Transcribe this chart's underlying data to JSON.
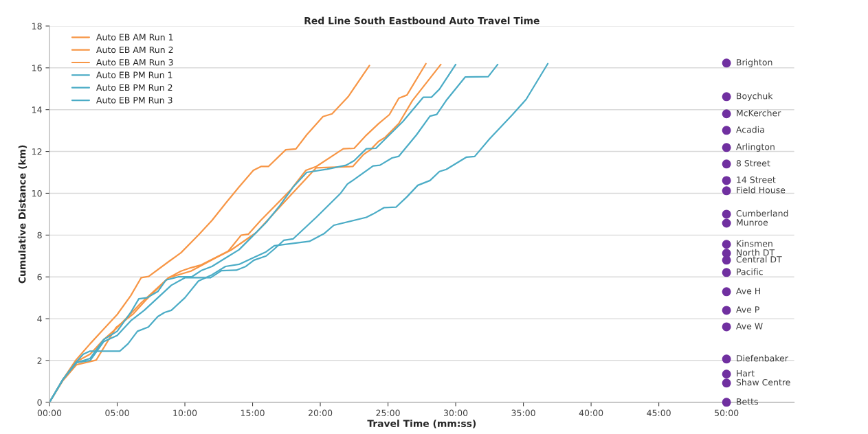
{
  "chart_data": {
    "type": "line",
    "title": "Red Line South Eastbound Auto Travel Time",
    "xlabel": "Travel Time (mm:ss)",
    "ylabel": "Cumulative Distance (km)",
    "xlim": [
      0,
      55
    ],
    "ylim": [
      0,
      18
    ],
    "xticks": [
      {
        "value": 0,
        "label": "00:00"
      },
      {
        "value": 5,
        "label": "05:00"
      },
      {
        "value": 10,
        "label": "10:00"
      },
      {
        "value": 15,
        "label": "15:00"
      },
      {
        "value": 20,
        "label": "20:00"
      },
      {
        "value": 25,
        "label": "25:00"
      },
      {
        "value": 30,
        "label": "30:00"
      },
      {
        "value": 35,
        "label": "35:00"
      },
      {
        "value": 40,
        "label": "40:00"
      },
      {
        "value": 45,
        "label": "45:00"
      },
      {
        "value": 50,
        "label": "50:00"
      }
    ],
    "yticks": [
      0,
      2,
      4,
      6,
      8,
      10,
      12,
      14,
      16,
      18
    ],
    "grid": "y",
    "legend": "top left",
    "series": [
      {
        "name": "Auto EB AM Run 1",
        "color": "#f79646",
        "x": [
          0,
          1,
          1.95,
          3,
          4,
          5,
          6,
          6.77,
          7.32,
          8.8,
          9.72,
          11,
          12,
          13.03,
          14,
          15.06,
          15.62,
          16.17,
          17.45,
          18.2,
          19,
          20.2,
          20.87,
          22.06,
          23.63
        ],
        "values": [
          0,
          1.1,
          2.02,
          2.8,
          3.5,
          4.2,
          5.1,
          5.96,
          6.02,
          6.73,
          7.16,
          8.0,
          8.7,
          9.54,
          10.3,
          11.1,
          11.28,
          11.28,
          12.08,
          12.12,
          12.8,
          13.67,
          13.8,
          14.62,
          16.11
        ]
      },
      {
        "name": "Auto EB AM Run 2",
        "color": "#f79646",
        "x": [
          0,
          1,
          2,
          3,
          4,
          4.92,
          6.77,
          8.8,
          9.72,
          10.45,
          11.2,
          13.2,
          14.15,
          14.7,
          15.6,
          17.8,
          18.94,
          19.7,
          21.7,
          22.5,
          23.4,
          24.3,
          25.1,
          25.8,
          26.4,
          27.8
        ],
        "values": [
          0,
          1.1,
          1.95,
          2.3,
          3.0,
          3.52,
          4.76,
          5.96,
          6.28,
          6.44,
          6.57,
          7.23,
          7.99,
          8.05,
          8.7,
          10.15,
          11.1,
          11.28,
          12.13,
          12.15,
          12.78,
          13.33,
          13.76,
          14.55,
          14.7,
          16.2
        ]
      },
      {
        "name": "Auto EB AM Run 3",
        "color": "#f79646",
        "x": [
          0,
          1,
          2,
          3.45,
          4.92,
          6.2,
          7.13,
          8.8,
          10.45,
          12.3,
          13.4,
          15.25,
          17.8,
          19.7,
          22.4,
          23.2,
          23.7,
          24.3,
          24.8,
          25.8,
          26.8,
          28.9
        ],
        "values": [
          0,
          1.05,
          1.8,
          2.02,
          3.58,
          4.24,
          4.9,
          5.96,
          6.28,
          6.92,
          7.28,
          8.11,
          9.9,
          11.22,
          11.28,
          11.86,
          12.08,
          12.48,
          12.68,
          13.34,
          14.43,
          16.16
        ]
      },
      {
        "name": "Auto EB PM Run 1",
        "color": "#4bacc6",
        "x": [
          0,
          1,
          2,
          3,
          4,
          5,
          6,
          6.6,
          7.2,
          8,
          8.6,
          9.5,
          10.5,
          11.2,
          12,
          13,
          14,
          15,
          16,
          17,
          18,
          19,
          20.5,
          21.9,
          22.5,
          23.4,
          24.1,
          25.1,
          26.1,
          27.6,
          28.2,
          28.8,
          30.0
        ],
        "values": [
          0,
          1.1,
          1.9,
          2.1,
          3.0,
          3.4,
          4.3,
          4.95,
          5.0,
          5.3,
          5.85,
          6.0,
          6.0,
          6.3,
          6.5,
          6.9,
          7.3,
          7.95,
          8.6,
          9.4,
          10.3,
          11.0,
          11.15,
          11.34,
          11.56,
          12.13,
          12.15,
          12.79,
          13.43,
          14.59,
          14.59,
          14.98,
          16.16
        ]
      },
      {
        "name": "Auto EB PM Run 2",
        "color": "#4bacc6",
        "x": [
          0,
          1,
          2,
          3,
          4,
          5,
          6,
          7,
          8,
          9,
          10,
          11.9,
          12.7,
          13.8,
          14.5,
          15.1,
          16,
          16.6,
          17.3,
          18.0,
          19.7,
          21.5,
          22.0,
          22.5,
          23.9,
          24.4,
          25.3,
          25.8,
          27.1,
          28.1,
          28.6,
          29.3,
          30.7,
          32.4,
          33.1
        ],
        "values": [
          0,
          1.1,
          1.9,
          2.0,
          2.9,
          3.2,
          3.9,
          4.4,
          5.0,
          5.6,
          5.96,
          5.96,
          6.3,
          6.32,
          6.5,
          6.8,
          7.0,
          7.33,
          7.75,
          7.82,
          8.85,
          10.0,
          10.44,
          10.66,
          11.31,
          11.34,
          11.69,
          11.77,
          12.79,
          13.69,
          13.77,
          14.44,
          15.56,
          15.58,
          16.16
        ]
      },
      {
        "name": "Auto EB PM Run 3",
        "color": "#4bacc6",
        "x": [
          0,
          1,
          2,
          2.5,
          3,
          5.2,
          5.8,
          6.5,
          7.3,
          8,
          8.5,
          9,
          10,
          11,
          12,
          13,
          14,
          15,
          16,
          16.6,
          19.2,
          20.3,
          21.0,
          23.4,
          23.9,
          24.7,
          25.6,
          26.4,
          27.2,
          28.1,
          28.8,
          29.3,
          30.8,
          31.4,
          32.5,
          34.2,
          35.2,
          36.8
        ],
        "values": [
          0,
          1.1,
          1.95,
          2.3,
          2.45,
          2.45,
          2.8,
          3.4,
          3.6,
          4.1,
          4.3,
          4.4,
          5.0,
          5.8,
          6.1,
          6.5,
          6.6,
          6.9,
          7.2,
          7.49,
          7.7,
          8.08,
          8.47,
          8.85,
          9.01,
          9.31,
          9.34,
          9.83,
          10.38,
          10.61,
          11.04,
          11.14,
          11.73,
          11.76,
          12.6,
          13.77,
          14.49,
          16.2
        ]
      },
      {
        "type": "scatter",
        "color": "#7030a0",
        "marker": "circle",
        "x": [
          50,
          50,
          50,
          50,
          50,
          50,
          50,
          50,
          50,
          50,
          50,
          50,
          50,
          50,
          50,
          50,
          50,
          50,
          50,
          50,
          50
        ],
        "values": [
          16.23,
          14.62,
          13.8,
          13.01,
          12.19,
          11.4,
          10.61,
          10.12,
          9.0,
          8.57,
          7.56,
          7.13,
          6.8,
          6.21,
          5.29,
          4.4,
          3.61,
          2.07,
          1.35,
          0.92,
          0
        ]
      }
    ],
    "annotations": [
      "Brighton",
      "Boychuk",
      "McKercher",
      "Acadia",
      "Arlington",
      "8 Street",
      "14 Street",
      "Field House",
      "Cumberland",
      "Munroe",
      "Kinsmen",
      "North DT",
      "Central DT",
      "Pacific",
      "Ave H",
      "Ave P",
      "Ave W",
      "Diefenbaker",
      "Hart",
      "Shaw Centre",
      "Betts"
    ]
  }
}
